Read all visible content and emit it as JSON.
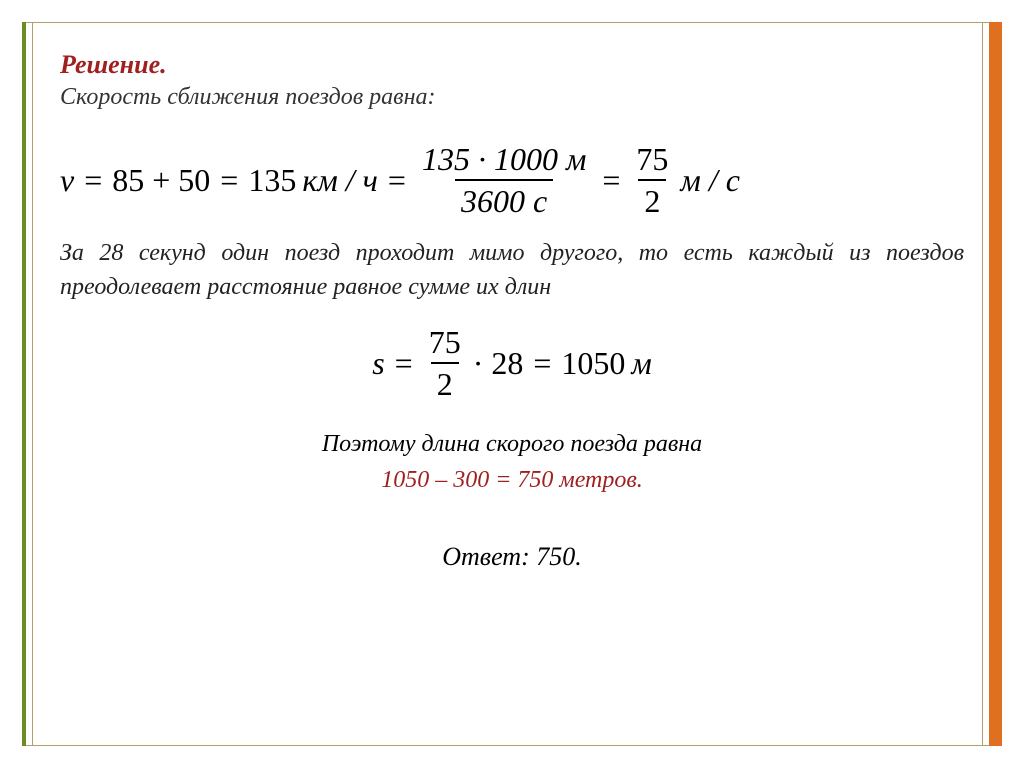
{
  "slide": {
    "border_colors": {
      "left_bar": "#6b8e23",
      "right_bar": "#e07020",
      "thin_lines": "#b0a070"
    },
    "background_color": "#ffffff"
  },
  "text": {
    "heading": "Решение.",
    "heading_color": "#a02020",
    "heading_fontsize": 26,
    "subheading": "Скорость сближения поездов равна:",
    "paragraph": "За 28 секунд один поезд проходит мимо другого, то есть каждый из поездов преодолевает расстояние равное сумме их длин",
    "conclusion_line1": "Поэтому длина скорого поезда равна",
    "conclusion_line2": "1050 – 300 = 750 метров.",
    "answer": "Ответ: 750.",
    "body_font": "Georgia/Times italic",
    "body_fontsize": 24
  },
  "math": {
    "eq1": {
      "lhs_var": "v",
      "sum": "85 + 50",
      "value": "135",
      "unit1": "км / ч",
      "frac1_num": "135 · 1000 м",
      "frac1_den": "3600 с",
      "frac2_num": "75",
      "frac2_den": "2",
      "unit2": "м / с",
      "fontsize": 32
    },
    "eq2": {
      "lhs_var": "s",
      "frac_num": "75",
      "frac_den": "2",
      "mult": "· 28",
      "result": "1050",
      "unit": "м",
      "fontsize": 32
    }
  }
}
